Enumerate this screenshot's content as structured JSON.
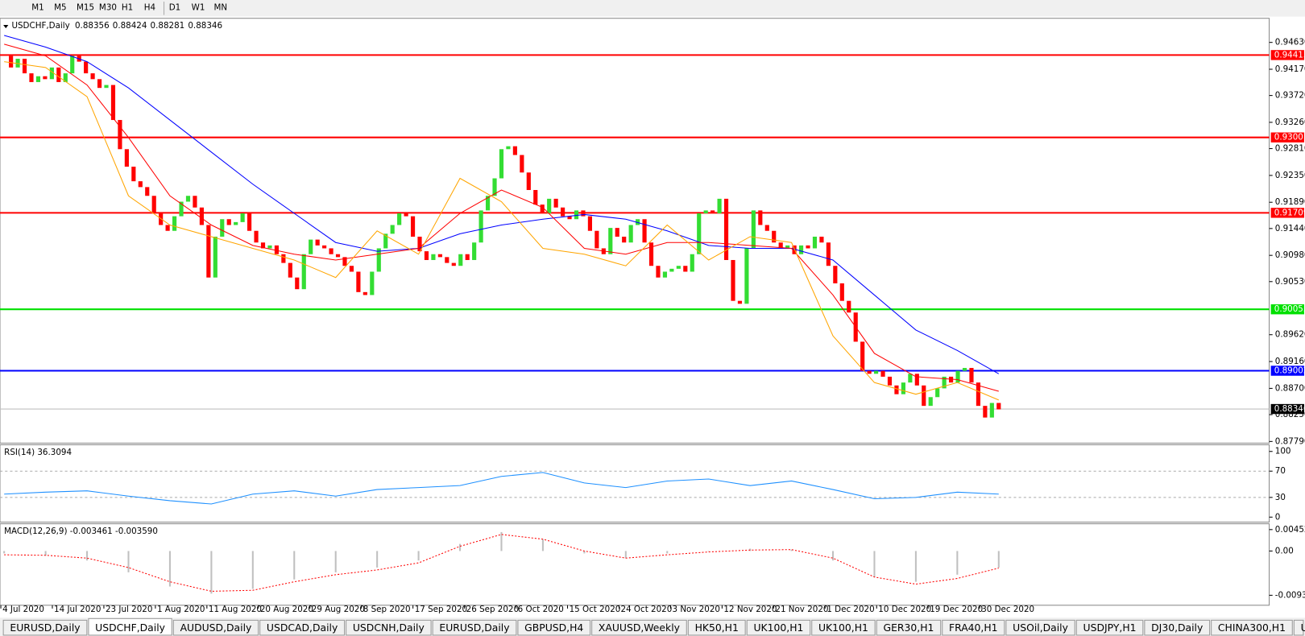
{
  "toolbar": {
    "timeframes": [
      "M1",
      "M5",
      "M15",
      "M30",
      "H1",
      "H4",
      "D1",
      "W1",
      "MN"
    ]
  },
  "chart_data": {
    "type": "candlestick",
    "title": "USDCHF,Daily",
    "header_values": [
      0.88356,
      0.88424,
      0.88281,
      0.88346
    ],
    "up_color": "#33dd33",
    "down_color": "#ff0000",
    "closes": [
      0.944,
      0.942,
      0.9435,
      0.941,
      0.9395,
      0.9405,
      0.94,
      0.942,
      0.9395,
      0.941,
      0.944,
      0.943,
      0.941,
      0.94,
      0.9385,
      0.939,
      0.933,
      0.928,
      0.925,
      0.9225,
      0.9215,
      0.92,
      0.917,
      0.915,
      0.914,
      0.9165,
      0.919,
      0.92,
      0.918,
      0.915,
      0.906,
      0.913,
      0.916,
      0.915,
      0.9155,
      0.917,
      0.914,
      0.912,
      0.911,
      0.9115,
      0.91,
      0.9085,
      0.906,
      0.904,
      0.91,
      0.9125,
      0.9115,
      0.911,
      0.91,
      0.9095,
      0.908,
      0.907,
      0.9035,
      0.903,
      0.907,
      0.911,
      0.9135,
      0.915,
      0.917,
      0.9165,
      0.913,
      0.9105,
      0.909,
      0.91,
      0.9095,
      0.9085,
      0.908,
      0.91,
      0.909,
      0.912,
      0.9175,
      0.92,
      0.923,
      0.928,
      0.9285,
      0.927,
      0.924,
      0.921,
      0.9185,
      0.917,
      0.9195,
      0.918,
      0.9165,
      0.916,
      0.9175,
      0.9165,
      0.914,
      0.911,
      0.91,
      0.9145,
      0.913,
      0.912,
      0.915,
      0.916,
      0.912,
      0.908,
      0.906,
      0.907,
      0.9075,
      0.908,
      0.907,
      0.91,
      0.917,
      0.9175,
      0.917,
      0.9195,
      0.909,
      0.902,
      0.9015,
      0.911,
      0.9175,
      0.915,
      0.914,
      0.912,
      0.911,
      0.9115,
      0.91,
      0.9115,
      0.911,
      0.913,
      0.912,
      0.908,
      0.905,
      0.902,
      0.9,
      0.895,
      0.89,
      0.8895,
      0.89,
      0.889,
      0.8875,
      0.886,
      0.888,
      0.8895,
      0.8875,
      0.884,
      0.8855,
      0.887,
      0.889,
      0.888,
      0.89,
      0.8905,
      0.888,
      0.884,
      0.882,
      0.8845,
      0.8834
    ],
    "ylim": [
      0.8779,
      0.9463
    ],
    "yticks": [
      {
        "value": 0.9463,
        "label": "0.94630"
      },
      {
        "value": 0.9417,
        "label": "0.94170"
      },
      {
        "value": 0.9372,
        "label": "0.93720"
      },
      {
        "value": 0.9326,
        "label": "0.93260"
      },
      {
        "value": 0.9281,
        "label": "0.92810"
      },
      {
        "value": 0.9235,
        "label": "0.92350"
      },
      {
        "value": 0.9189,
        "label": "0.91890"
      },
      {
        "value": 0.9144,
        "label": "0.91440"
      },
      {
        "value": 0.9098,
        "label": "0.90980"
      },
      {
        "value": 0.9053,
        "label": "0.90530"
      },
      {
        "value": 0.8962,
        "label": "0.89620"
      },
      {
        "value": 0.8916,
        "label": "0.89160"
      },
      {
        "value": 0.887,
        "label": "0.88700"
      },
      {
        "value": 0.8825,
        "label": "0.88250"
      },
      {
        "value": 0.8779,
        "label": "0.87790"
      }
    ],
    "levels": [
      {
        "value": 0.94413,
        "color": "#ff0000"
      },
      {
        "value": 0.93001,
        "color": "#ff0000"
      },
      {
        "value": 0.91709,
        "color": "#ff0000"
      },
      {
        "value": 0.90055,
        "color": "#00e000"
      },
      {
        "value": 0.89002,
        "color": "#0000ff"
      },
      {
        "value": 0.88346,
        "color": "#000000"
      }
    ],
    "x_labels": [
      "4 Jul 2020",
      "14 Jul 2020",
      "23 Jul 2020",
      "1 Aug 2020",
      "11 Aug 2020",
      "20 Aug 2020",
      "29 Aug 2020",
      "8 Sep 2020",
      "17 Sep 2020",
      "26 Sep 2020",
      "6 Oct 2020",
      "15 Oct 2020",
      "24 Oct 2020",
      "3 Nov 2020",
      "12 Nov 2020",
      "21 Nov 2020",
      "1 Dec 2020",
      "10 Dec 2020",
      "19 Dec 2020",
      "30 Dec 2020"
    ],
    "moving_averages": [
      {
        "color": "#0000ff",
        "values": [
          0.9475,
          0.9455,
          0.943,
          0.9385,
          0.933,
          0.9275,
          0.922,
          0.917,
          0.912,
          0.9105,
          0.911,
          0.9135,
          0.915,
          0.916,
          0.9168,
          0.916,
          0.914,
          0.9115,
          0.911,
          0.911,
          0.909,
          0.903,
          0.897,
          0.8935,
          0.8895
        ]
      },
      {
        "color": "#ff0000",
        "values": [
          0.946,
          0.944,
          0.939,
          0.93,
          0.92,
          0.915,
          0.9115,
          0.91,
          0.909,
          0.91,
          0.911,
          0.917,
          0.921,
          0.918,
          0.911,
          0.91,
          0.912,
          0.912,
          0.9115,
          0.911,
          0.903,
          0.893,
          0.889,
          0.8885,
          0.8865
        ]
      },
      {
        "color": "#ffa500",
        "values": [
          0.943,
          0.942,
          0.937,
          0.92,
          0.915,
          0.913,
          0.911,
          0.909,
          0.906,
          0.914,
          0.91,
          0.923,
          0.919,
          0.911,
          0.91,
          0.908,
          0.915,
          0.909,
          0.913,
          0.912,
          0.896,
          0.888,
          0.886,
          0.888,
          0.885
        ]
      }
    ],
    "rsi": {
      "title": "RSI(14) 36.3094",
      "color": "#1e90ff",
      "values": [
        35,
        38,
        40,
        32,
        25,
        20,
        35,
        40,
        32,
        42,
        45,
        48,
        62,
        68,
        52,
        45,
        55,
        58,
        48,
        55,
        42,
        28,
        30,
        38,
        35
      ],
      "ylim": [
        0,
        100
      ],
      "yticks": [
        100,
        70,
        30,
        0
      ],
      "levels": [
        70,
        30
      ]
    },
    "macd": {
      "title": "MACD(12,26,9) -0.003461 -0.003590",
      "hist_color": "#c0c0c0",
      "signal_color": "#ff0000",
      "histogram": [
        -0.0005,
        -0.001,
        -0.002,
        -0.0045,
        -0.0075,
        -0.009,
        -0.008,
        -0.006,
        -0.0045,
        -0.0035,
        -0.002,
        0.0015,
        0.004,
        0.0025,
        -0.0005,
        -0.0015,
        -0.0005,
        0.0,
        0.0005,
        0.0003,
        -0.002,
        -0.0055,
        -0.0065,
        -0.005,
        -0.0035
      ],
      "signal": [
        -0.0008,
        -0.0009,
        -0.0015,
        -0.0035,
        -0.0065,
        -0.0085,
        -0.0083,
        -0.0065,
        -0.005,
        -0.004,
        -0.0025,
        0.001,
        0.0035,
        0.0025,
        0.0,
        -0.0015,
        -0.0008,
        -0.0002,
        0.0002,
        0.0003,
        -0.0015,
        -0.0055,
        -0.007,
        -0.0058,
        -0.0036
      ],
      "ylim": [
        -0.009348,
        0.004527
      ],
      "yticks": [
        0.004527,
        {
          "value": 0,
          "label": "0.00"
        },
        -0.009348
      ]
    }
  },
  "tabs": {
    "items": [
      "EURUSD,Daily",
      "USDCHF,Daily",
      "AUDUSD,Daily",
      "USDCAD,Daily",
      "USDCNH,Daily",
      "EURUSD,Daily",
      "GBPUSD,H4",
      "XAUUSD,Weekly",
      "HK50,H1",
      "UK100,H1",
      "UK100,H1",
      "GER30,H1",
      "FRA40,H1",
      "USOil,Daily",
      "USDJPY,H1",
      "DJ30,Daily",
      "CHINA300,H1",
      "US"
    ],
    "active": 1
  }
}
